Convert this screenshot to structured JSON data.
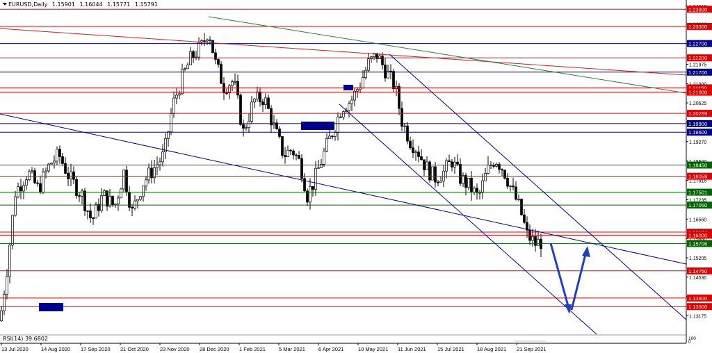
{
  "header": {
    "symbol": "EURUSD,Daily",
    "open": "1.15901",
    "high": "1.16044",
    "low": "1.15771",
    "close": "1.15791"
  },
  "indicator": {
    "label": "RSI(14) 39.6802"
  },
  "rsi_scale": [
    "100",
    "0"
  ],
  "colors": {
    "candle": "#000000",
    "red_level": "#e00000",
    "green_level": "#006400",
    "blue_level": "#00008b",
    "channel": "#00008b",
    "trend_red": "#d42020",
    "trend_green": "#2e7d32",
    "arrow": "#1f3fbf",
    "price_grid": "#c8c8c8"
  },
  "chart_data": {
    "type": "candlestick",
    "ylim": [
      1.128,
      1.2415
    ],
    "price_ticks": [
      "1.24010",
      "1.23380",
      "1.22695",
      "1.21975",
      "1.21300",
      "1.20625",
      "1.19945",
      "1.19270",
      "1.18590",
      "1.17915",
      "1.17235",
      "1.16560",
      "1.15880",
      "1.15205",
      "1.14530",
      "1.13850",
      "1.13175"
    ],
    "dates": [
      "13 Jul 2020",
      "14 Aug 2020",
      "17 Sep 2020",
      "21 Oct 2020",
      "23 Nov 2020",
      "28 Dec 2020",
      "1 Feb 2021",
      "5 Mar 2021",
      "6 Apr 2021",
      "10 May 2021",
      "11 Jun 2021",
      "15 Jul 2021",
      "18 Aug 2021",
      "21 Sep 2021"
    ],
    "levels": [
      {
        "label": "1.23900",
        "price": 1.239,
        "color": "red"
      },
      {
        "label": "1.23300",
        "price": 1.233,
        "color": "red"
      },
      {
        "label": "1.22700",
        "price": 1.227,
        "color": "blue"
      },
      {
        "label": "1.22200",
        "price": 1.222,
        "color": "red"
      },
      {
        "label": "1.21700",
        "price": 1.217,
        "color": "blue"
      },
      {
        "label": "1.21150",
        "price": 1.2115,
        "color": "red"
      },
      {
        "label": "1.21000",
        "price": 1.21,
        "color": "red"
      },
      {
        "label": "1.20259",
        "price": 1.20259,
        "color": "red"
      },
      {
        "label": "1.19900",
        "price": 1.199,
        "color": "blue"
      },
      {
        "label": "1.19600",
        "price": 1.196,
        "color": "blue"
      },
      {
        "label": "1.18450",
        "price": 1.1845,
        "color": "green"
      },
      {
        "label": "1.18059",
        "price": 1.18059,
        "color": "red"
      },
      {
        "label": "1.17501",
        "price": 1.17501,
        "color": "green"
      },
      {
        "label": "1.17050",
        "price": 1.1705,
        "color": "green"
      },
      {
        "label": "1.16104",
        "price": 1.16104,
        "color": "red"
      },
      {
        "label": "1.16000",
        "price": 1.16,
        "color": "red"
      },
      {
        "label": "1.15706",
        "price": 1.15706,
        "color": "green"
      },
      {
        "label": "1.14750",
        "price": 1.1475,
        "color": "red"
      },
      {
        "label": "1.13800",
        "price": 1.138,
        "color": "red"
      },
      {
        "label": "1.13500",
        "price": 1.135,
        "color": "red"
      }
    ],
    "path": [
      [
        0,
        1.13
      ],
      [
        10,
        1.148
      ],
      [
        22,
        1.175
      ],
      [
        40,
        1.182
      ],
      [
        55,
        1.176
      ],
      [
        72,
        1.185
      ],
      [
        85,
        1.188
      ],
      [
        100,
        1.18
      ],
      [
        118,
        1.174
      ],
      [
        132,
        1.165
      ],
      [
        148,
        1.174
      ],
      [
        165,
        1.17
      ],
      [
        178,
        1.182
      ],
      [
        190,
        1.168
      ],
      [
        205,
        1.178
      ],
      [
        220,
        1.183
      ],
      [
        236,
        1.188
      ],
      [
        248,
        1.205
      ],
      [
        262,
        1.215
      ],
      [
        275,
        1.222
      ],
      [
        290,
        1.226
      ],
      [
        300,
        1.232
      ],
      [
        310,
        1.22
      ],
      [
        322,
        1.212
      ],
      [
        336,
        1.214
      ],
      [
        350,
        1.196
      ],
      [
        365,
        1.207
      ],
      [
        380,
        1.208
      ],
      [
        395,
        1.197
      ],
      [
        408,
        1.188
      ],
      [
        420,
        1.19
      ],
      [
        432,
        1.185
      ],
      [
        442,
        1.174
      ],
      [
        452,
        1.179
      ],
      [
        465,
        1.188
      ],
      [
        478,
        1.196
      ],
      [
        492,
        1.205
      ],
      [
        505,
        1.207
      ],
      [
        518,
        1.213
      ],
      [
        530,
        1.22
      ],
      [
        542,
        1.223
      ],
      [
        556,
        1.217
      ],
      [
        568,
        1.212
      ],
      [
        578,
        1.2
      ],
      [
        590,
        1.193
      ],
      [
        600,
        1.19
      ],
      [
        612,
        1.184
      ],
      [
        625,
        1.18
      ],
      [
        638,
        1.182
      ],
      [
        650,
        1.186
      ],
      [
        662,
        1.18
      ],
      [
        675,
        1.177
      ],
      [
        688,
        1.173
      ],
      [
        700,
        1.182
      ],
      [
        712,
        1.187
      ],
      [
        724,
        1.183
      ],
      [
        736,
        1.176
      ],
      [
        748,
        1.169
      ],
      [
        758,
        1.16
      ],
      [
        770,
        1.157
      ],
      [
        782,
        1.158
      ]
    ]
  }
}
